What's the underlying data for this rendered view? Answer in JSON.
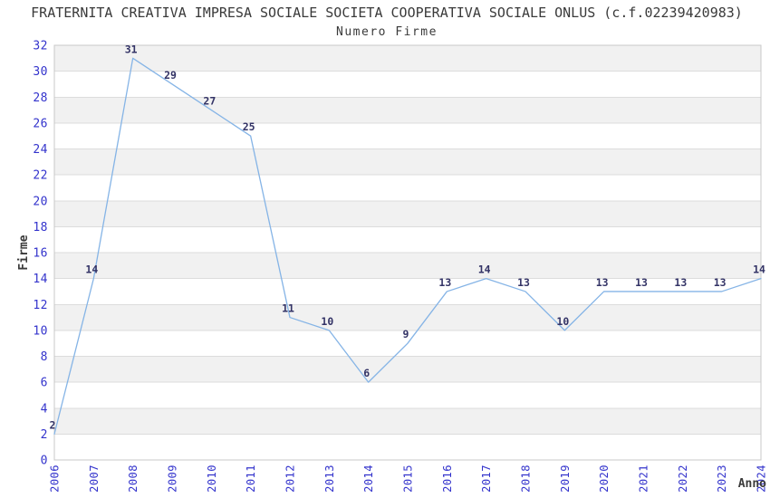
{
  "header": {
    "title": "FRATERNITA CREATIVA IMPRESA SOCIALE SOCIETA COOPERATIVA SOCIALE ONLUS (c.f.02239420983)",
    "subtitle": "Numero Firme"
  },
  "chart_data": {
    "type": "line",
    "title": "Numero Firme",
    "xlabel": "Anno",
    "ylabel": "Firme",
    "categories": [
      "2006",
      "2007",
      "2008",
      "2009",
      "2010",
      "2011",
      "2012",
      "2013",
      "2014",
      "2015",
      "2016",
      "2017",
      "2018",
      "2019",
      "2020",
      "2021",
      "2022",
      "2023",
      "2024"
    ],
    "series": [
      {
        "name": "Numero Firme",
        "values": [
          2,
          14,
          31,
          29,
          27,
          25,
          11,
          10,
          6,
          9,
          13,
          14,
          13,
          10,
          13,
          13,
          13,
          13,
          14
        ]
      }
    ],
    "point_labels": [
      "2",
      "14",
      "31",
      "29",
      "27",
      "25",
      "11",
      "10",
      "6",
      "9",
      "13",
      "14",
      "13",
      "10",
      "13",
      "13",
      "13",
      "13",
      "14"
    ],
    "ylim": [
      0,
      32
    ],
    "ytick_step": 2,
    "yticks": [
      0,
      2,
      4,
      6,
      8,
      10,
      12,
      14,
      16,
      18,
      20,
      22,
      24,
      26,
      28,
      30,
      32
    ],
    "grid": "horizontal gridlines every 2 units with alternating gray/white bands (gray topmost)",
    "legend": "none"
  },
  "colors": {
    "background": "#ffffff",
    "band": "#f1f1f1",
    "gridline": "#dcdcdc",
    "plot_border": "#c8c8c8",
    "line": "#85b4e6",
    "tick_label": "#3333cc",
    "point_label": "#333366",
    "text": "#3a3a3a"
  }
}
